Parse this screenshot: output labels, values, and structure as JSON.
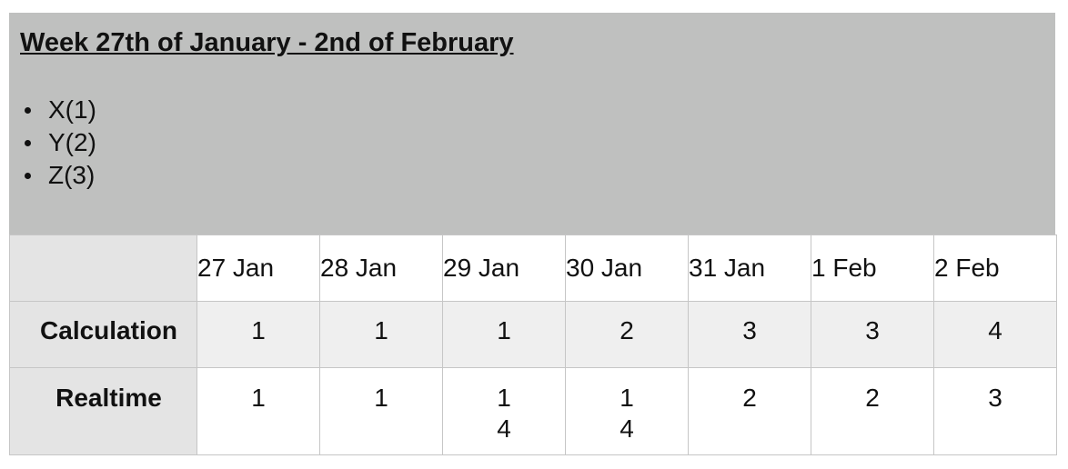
{
  "title": "Week 27th of January - 2nd of February",
  "legend": [
    "X(1)",
    "Y(2)",
    "Z(3)"
  ],
  "table": {
    "columns": [
      "27 Jan",
      "28 Jan",
      "29 Jan",
      "30 Jan",
      "31 Jan",
      "1 Feb",
      "2 Feb"
    ],
    "rows": [
      {
        "label": "Calculation",
        "cells": [
          [
            "1"
          ],
          [
            "1"
          ],
          [
            "1"
          ],
          [
            "2"
          ],
          [
            "3"
          ],
          [
            "3"
          ],
          [
            "4"
          ]
        ]
      },
      {
        "label": "Realtime",
        "cells": [
          [
            "1"
          ],
          [
            "1"
          ],
          [
            "1",
            "4"
          ],
          [
            "1",
            "4"
          ],
          [
            "2"
          ],
          [
            "2"
          ],
          [
            "3"
          ]
        ]
      }
    ]
  }
}
